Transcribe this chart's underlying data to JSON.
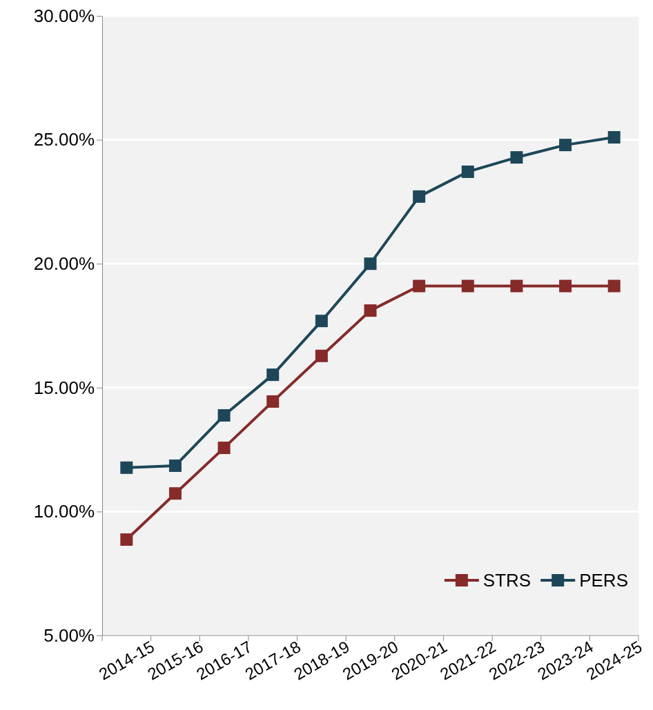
{
  "chart_data": {
    "type": "line",
    "categories": [
      "2014-15",
      "2015-16",
      "2016-17",
      "2017-18",
      "2018-19",
      "2019-20",
      "2020-21",
      "2021-22",
      "2022-23",
      "2023-24",
      "2024-25"
    ],
    "series": [
      {
        "name": "STRS",
        "color": "#862a2a",
        "values": [
          8.87,
          10.73,
          12.57,
          14.44,
          16.28,
          18.11,
          19.1,
          19.1,
          19.1,
          19.1,
          19.1
        ]
      },
      {
        "name": "PERS",
        "color": "#1d4758",
        "values": [
          11.77,
          11.85,
          13.88,
          15.52,
          17.69,
          20.0,
          22.71,
          23.71,
          24.29,
          24.79,
          25.1
        ]
      }
    ],
    "ylim": [
      5,
      30
    ],
    "yticks": [
      {
        "value": 5,
        "label": "5.00%"
      },
      {
        "value": 10,
        "label": "10.00%"
      },
      {
        "value": 15,
        "label": "15.00%"
      },
      {
        "value": 20,
        "label": "20.00%"
      },
      {
        "value": 25,
        "label": "25.00%"
      },
      {
        "value": 30,
        "label": "30.00%"
      }
    ],
    "grid": "y",
    "legend": "bottom right",
    "marker": "square",
    "line_style": "solid"
  }
}
